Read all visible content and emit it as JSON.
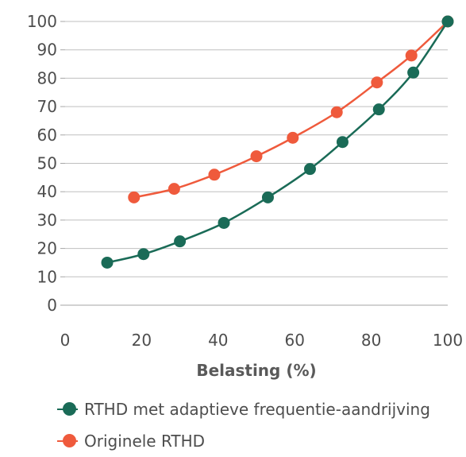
{
  "chart_data": {
    "type": "line",
    "xlabel": "Belasting (%)",
    "ylabel": "",
    "xlim": [
      0,
      100
    ],
    "ylim": [
      0,
      100
    ],
    "xticks": [
      0,
      20,
      40,
      60,
      80,
      100
    ],
    "yticks": [
      0,
      10,
      20,
      30,
      40,
      50,
      60,
      70,
      80,
      90,
      100
    ],
    "grid": "horizontal",
    "legend_position": "bottom",
    "series": [
      {
        "name": "RTHD met adaptieve frequentie-aandrijving",
        "color": "#1a6b57",
        "x": [
          11,
          20.5,
          30,
          41.5,
          53,
          64,
          72.5,
          82,
          91,
          100
        ],
        "y": [
          15,
          18,
          22.5,
          29,
          38,
          48,
          57.5,
          69,
          82,
          100
        ]
      },
      {
        "name": "Originele RTHD",
        "color": "#ef5a3c",
        "x": [
          18,
          28.5,
          39,
          50,
          59.5,
          71,
          81.5,
          90.5,
          100
        ],
        "y": [
          38,
          41,
          46,
          52.5,
          59,
          68,
          78.5,
          88,
          100
        ]
      }
    ]
  }
}
